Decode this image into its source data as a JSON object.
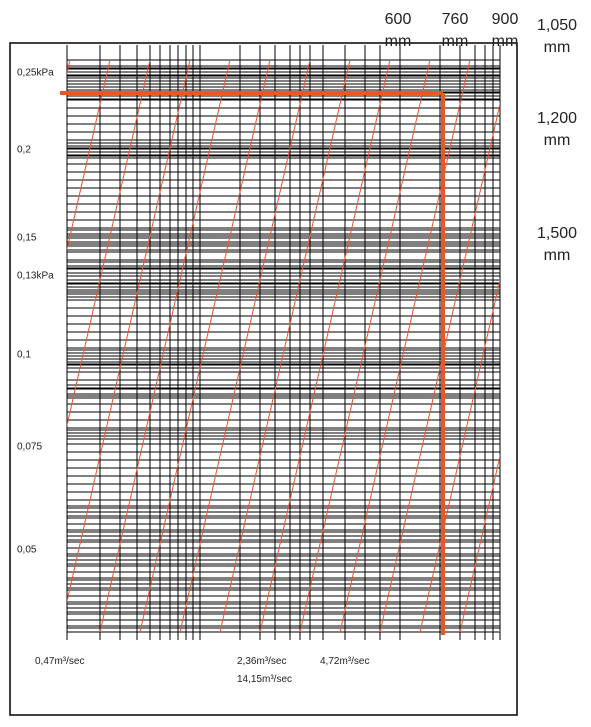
{
  "y_labels": [
    "0,25kPa",
    "0,2",
    "0,15",
    "0,13kPa",
    "0,1",
    "0,075",
    "0,05"
  ],
  "x_labels": [
    "0,47m³/sec",
    "2,36m³/sec",
    "4,72m³/sec",
    "14,15m³/sec"
  ],
  "size_labels": [
    {
      "size": "600",
      "unit": "mm"
    },
    {
      "size": "760",
      "unit": "mm"
    },
    {
      "size": "900",
      "unit": "mm"
    },
    {
      "size": "1,050",
      "unit": "mm"
    },
    {
      "size": "1,200",
      "unit": "mm"
    },
    {
      "size": "1,500",
      "unit": "mm"
    }
  ]
}
